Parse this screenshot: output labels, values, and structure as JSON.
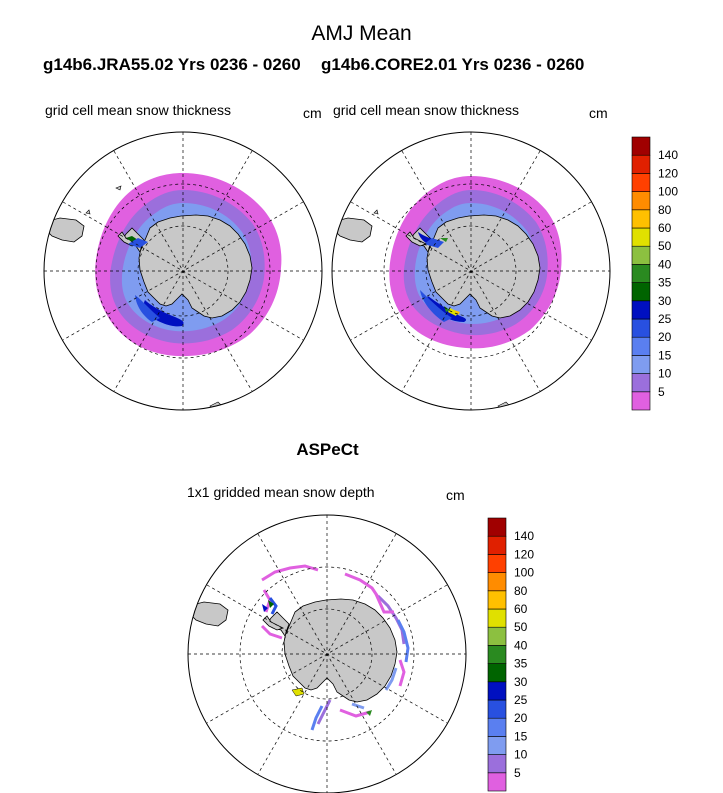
{
  "figure": {
    "title": "AMJ Mean",
    "run_left": "g14b6.JRA55.02  Yrs 0236 - 0260",
    "run_right": "g14b6.CORE2.01  Yrs 0236 - 0260",
    "panel_variable": "grid cell mean snow thickness",
    "unit": "cm",
    "obs_title": "ASPeCt",
    "obs_variable": "1x1 gridded mean snow depth"
  },
  "chart_data": [
    {
      "type": "heatmap",
      "projection": "south-polar-stereographic",
      "title": "grid cell mean snow thickness",
      "run": "g14b6.JRA55.02  Yrs 0236 - 0260",
      "unit": "cm",
      "levels": [
        5,
        10,
        15,
        20,
        25,
        30,
        35,
        40,
        50,
        60,
        80,
        100,
        120,
        140
      ],
      "colors": [
        "#e060e0",
        "#9b6fdc",
        "#7f9cf0",
        "#5a7ff0",
        "#2850e0",
        "#0010c0",
        "#006400",
        "#2a8a20",
        "#8cc040",
        "#e0e000",
        "#ffc000",
        "#ff8c00",
        "#ff4000",
        "#e02000",
        "#a00000"
      ]
    },
    {
      "type": "heatmap",
      "projection": "south-polar-stereographic",
      "title": "grid cell mean snow thickness",
      "run": "g14b6.CORE2.01  Yrs 0236 - 0260",
      "unit": "cm",
      "levels": [
        5,
        10,
        15,
        20,
        25,
        30,
        35,
        40,
        50,
        60,
        80,
        100,
        120,
        140
      ],
      "colors": [
        "#e060e0",
        "#9b6fdc",
        "#7f9cf0",
        "#5a7ff0",
        "#2850e0",
        "#0010c0",
        "#006400",
        "#2a8a20",
        "#8cc040",
        "#e0e000",
        "#ffc000",
        "#ff8c00",
        "#ff4000",
        "#e02000",
        "#a00000"
      ]
    },
    {
      "type": "heatmap",
      "projection": "south-polar-stereographic",
      "title": "1x1 gridded mean snow depth",
      "run": "ASPeCt",
      "unit": "cm",
      "levels": [
        5,
        10,
        15,
        20,
        25,
        30,
        35,
        40,
        50,
        60,
        80,
        100,
        120,
        140
      ],
      "colors": [
        "#e060e0",
        "#9b6fdc",
        "#7f9cf0",
        "#5a7ff0",
        "#2850e0",
        "#0010c0",
        "#006400",
        "#2a8a20",
        "#8cc040",
        "#e0e000",
        "#ffc000",
        "#ff8c00",
        "#ff4000",
        "#e02000",
        "#a00000"
      ]
    }
  ]
}
